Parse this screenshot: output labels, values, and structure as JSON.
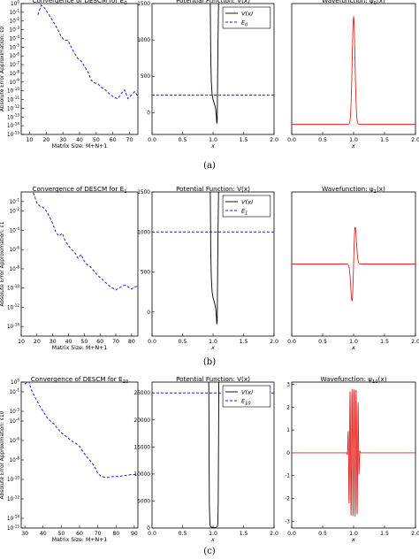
{
  "figure": {
    "row_labels": [
      "(a)",
      "(b)",
      "(c)"
    ],
    "colors": {
      "convergence": "#1f1fd6",
      "energy": "#1f1fd6",
      "potential": "#000000",
      "wave": "#e8231f"
    }
  },
  "chart_data": [
    {
      "type": "line",
      "row": 0,
      "col": 0,
      "title": "Convergence of DESCM for E0",
      "xlabel": "Matrix Size: M+N+1",
      "ylabel": "Absolute Error Approximation: ε0",
      "xlim": [
        5,
        75
      ],
      "ylim_log10": [
        -15,
        0
      ],
      "yscale": "log",
      "xticks": [
        "10",
        "20",
        "30",
        "40",
        "50",
        "60",
        "70"
      ],
      "yticks": [
        "10^0",
        "10^-1",
        "10^-2",
        "10^-3",
        "10^-4",
        "10^-5",
        "10^-6",
        "10^-7",
        "10^-8",
        "10^-9",
        "10^-10",
        "10^-11",
        "10^-12",
        "10^-13",
        "10^-14",
        "10^-15"
      ],
      "series": [
        {
          "style": "dashed",
          "x": [
            15,
            17,
            19,
            21,
            23,
            25,
            27,
            29,
            31,
            33,
            35,
            37,
            39,
            41,
            43,
            45,
            47,
            49,
            51,
            53,
            55,
            57,
            59,
            61,
            63,
            65,
            67,
            69,
            71,
            73,
            75
          ],
          "log10_y": [
            -1.3,
            -0.2,
            -0.5,
            -1.1,
            -1.7,
            -2.3,
            -3.0,
            -3.8,
            -4.2,
            -4.2,
            -5.0,
            -5.7,
            -6.3,
            -6.6,
            -7.2,
            -7.8,
            -8.8,
            -9.1,
            -9.2,
            -9.6,
            -9.8,
            -10.2,
            -10.5,
            -10.8,
            -10.9,
            -10.3,
            -9.9,
            -10.9,
            -10.5,
            -10.1,
            -10.6
          ]
        }
      ]
    },
    {
      "type": "line",
      "row": 0,
      "col": 1,
      "title": "Potential Function: V(x)",
      "xlabel": "x",
      "xlim": [
        0,
        2
      ],
      "ylim": [
        -300,
        1500
      ],
      "xticks": [
        "0.0",
        "0.5",
        "1.0",
        "1.5",
        "2.0"
      ],
      "yticks": [
        "0",
        "500",
        "1000",
        "1500"
      ],
      "legend": [
        "V(x)",
        "E0"
      ],
      "energy": 240,
      "series": [
        {
          "name": "V(x)",
          "x": [
            0.955,
            0.962,
            0.972,
            0.985,
            1.0,
            1.015,
            1.03,
            1.045,
            1.055,
            1.062,
            1.068,
            1.07,
            1.075,
            1.082,
            1.09
          ],
          "y": [
            1500,
            800,
            420,
            250,
            180,
            140,
            100,
            40,
            -60,
            -150,
            -110,
            0,
            500,
            1000,
            1500
          ]
        }
      ]
    },
    {
      "type": "line",
      "row": 0,
      "col": 2,
      "title": "Wavefunction: ψ0(x)",
      "xlabel": "x",
      "xlim": [
        0,
        2
      ],
      "ylim": [
        -0.3,
        3.6
      ],
      "xticks": [
        "0.0",
        "0.5",
        "1.0",
        "1.5",
        "2.0"
      ],
      "yticks": [],
      "series": [
        {
          "name": "ψ0(x)",
          "kind": "gauss",
          "center": 1.0,
          "width": 0.032,
          "amplitude": 3.2,
          "baseline": 0
        }
      ]
    },
    {
      "type": "line",
      "row": 1,
      "col": 0,
      "title": "Convergence of DESCM for E1",
      "xlabel": "Matrix Size: M+N+1",
      "ylabel": "Absolute Error Approximation: ε1",
      "xlim": [
        10,
        84
      ],
      "ylim_log10": [
        -15,
        0
      ],
      "yscale": "log",
      "xticks": [
        "10",
        "20",
        "30",
        "40",
        "50",
        "60",
        "70",
        "80"
      ],
      "yticks": [
        "10^-1",
        "10^-2",
        "10^-4",
        "10^-6",
        "10^-8",
        "10^-10",
        "10^-12",
        "10^-14"
      ],
      "series": [
        {
          "style": "dashed",
          "x": [
            16,
            18,
            20,
            22,
            24,
            26,
            28,
            30,
            32,
            34,
            36,
            38,
            40,
            42,
            44,
            46,
            48,
            50,
            52,
            54,
            56,
            58,
            60,
            62,
            64,
            66,
            68,
            70,
            72,
            74,
            76,
            78,
            80,
            82,
            84
          ],
          "log10_y": [
            0.3,
            -0.2,
            -1.2,
            -1.5,
            -1.6,
            -2.0,
            -2.6,
            -3.3,
            -4.2,
            -4.6,
            -4.3,
            -5.1,
            -5.6,
            -6.0,
            -6.3,
            -6.9,
            -6.5,
            -7.2,
            -7.6,
            -7.8,
            -8.2,
            -8.6,
            -8.9,
            -9.2,
            -9.5,
            -9.8,
            -10.0,
            -10.2,
            -10.0,
            -9.8,
            -9.7,
            -9.9,
            -10.1,
            -9.9,
            -9.8
          ]
        }
      ]
    },
    {
      "type": "line",
      "row": 1,
      "col": 1,
      "title": "Potential Function: V(x)",
      "xlabel": "x",
      "xlim": [
        0,
        2
      ],
      "ylim": [
        -300,
        1500
      ],
      "xticks": [
        "0.0",
        "0.5",
        "1.0",
        "1.5",
        "2.0"
      ],
      "yticks": [
        "0",
        "500",
        "1000",
        "1500"
      ],
      "legend": [
        "V(x)",
        "E1"
      ],
      "energy": 1000,
      "series": [
        {
          "name": "V(x)",
          "x": [
            0.955,
            0.962,
            0.972,
            0.985,
            1.0,
            1.015,
            1.03,
            1.045,
            1.055,
            1.062,
            1.068,
            1.07,
            1.075,
            1.082,
            1.09
          ],
          "y": [
            1500,
            800,
            420,
            250,
            180,
            140,
            100,
            40,
            -60,
            -150,
            -110,
            0,
            500,
            1000,
            1500
          ]
        }
      ]
    },
    {
      "type": "line",
      "row": 1,
      "col": 2,
      "title": "Wavefunction: ψ1(x)",
      "xlabel": "x",
      "xlim": [
        0,
        2
      ],
      "ylim": [
        -3.6,
        3.6
      ],
      "xticks": [
        "0.0",
        "0.5",
        "1.0",
        "1.5",
        "2.0"
      ],
      "yticks": [],
      "series": [
        {
          "name": "ψ1(x)",
          "kind": "odd",
          "center": 1.0,
          "width": 0.032,
          "amplitude": 3.2,
          "baseline": 0
        }
      ]
    },
    {
      "type": "line",
      "row": 2,
      "col": 0,
      "title": "Convergence of DESCM for E10",
      "xlabel": "Matrix Size: M+N+1",
      "ylabel": "Absolute Error Approximation: ε10",
      "xlim": [
        28,
        92
      ],
      "ylim_log10": [
        -15,
        0
      ],
      "yscale": "log",
      "xticks": [
        "30",
        "40",
        "50",
        "60",
        "70",
        "80",
        "90"
      ],
      "yticks": [
        "10^0",
        "10^-1",
        "10^-3",
        "10^-4",
        "10^-6",
        "10^-8",
        "10^-10",
        "10^-12",
        "10^-14",
        "10^-15"
      ],
      "series": [
        {
          "style": "dashed",
          "x": [
            30,
            32,
            34,
            36,
            38,
            40,
            42,
            44,
            46,
            48,
            50,
            52,
            54,
            56,
            58,
            60,
            62,
            64,
            66,
            68,
            70,
            72,
            74,
            76,
            78,
            80,
            82,
            84,
            86,
            88,
            90,
            92
          ],
          "log10_y": [
            -0.2,
            0.1,
            -1.0,
            -1.7,
            -2.4,
            -3.0,
            -3.6,
            -4.0,
            -4.3,
            -4.8,
            -5.2,
            -5.5,
            -5.8,
            -6.1,
            -6.3,
            -6.6,
            -7.2,
            -7.7,
            -8.1,
            -8.6,
            -9.4,
            -9.7,
            -9.8,
            -9.8,
            -9.7,
            -9.7,
            -9.7,
            -9.6,
            -9.6,
            -9.5,
            -9.5,
            -9.4
          ]
        }
      ]
    },
    {
      "type": "line",
      "row": 2,
      "col": 1,
      "title": "Potential Function: V(x)",
      "xlabel": "x",
      "xlim": [
        0,
        2
      ],
      "ylim": [
        0,
        27000
      ],
      "xticks": [
        "0.0",
        "0.5",
        "1.0",
        "1.5",
        "2.0"
      ],
      "yticks": [
        "0",
        "5000",
        "10000",
        "15000",
        "20000",
        "25000"
      ],
      "legend": [
        "V(x)",
        "E10"
      ],
      "energy": 25000,
      "series": [
        {
          "name": "V(x)",
          "x": [
            0.93,
            0.935,
            0.94,
            0.95,
            0.96,
            1.0,
            1.05,
            1.07,
            1.08,
            1.085,
            1.09,
            1.095
          ],
          "y": [
            27000,
            15000,
            4000,
            600,
            200,
            100,
            100,
            300,
            900,
            5000,
            15000,
            27000
          ]
        }
      ]
    },
    {
      "type": "line",
      "row": 2,
      "col": 2,
      "title": "Wavefunction: ψ10(x)",
      "xlabel": "x",
      "xlim": [
        0,
        2
      ],
      "ylim": [
        -3.3,
        3.1
      ],
      "xticks": [
        "0.0",
        "0.5",
        "1.0",
        "1.5",
        "2.0"
      ],
      "yticks": [
        "-3",
        "-2",
        "-1",
        "0",
        "1",
        "2",
        "3"
      ],
      "series": [
        {
          "name": "ψ10(x)",
          "kind": "oscillate",
          "center": 1.0,
          "half_width": 0.09,
          "cycles": 5.5,
          "amplitude": 2.8,
          "baseline": 0
        }
      ]
    }
  ]
}
